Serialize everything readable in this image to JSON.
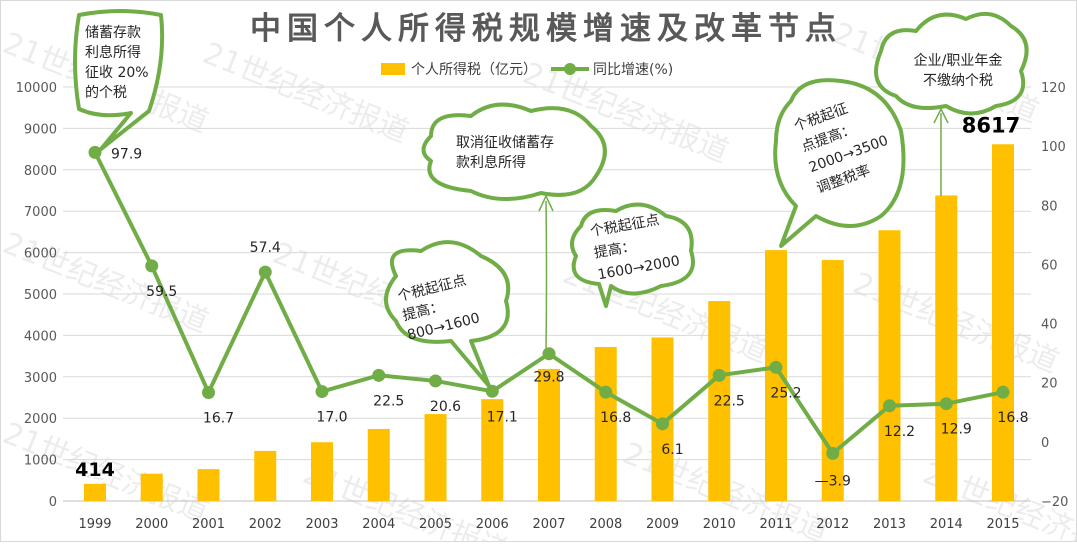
{
  "chart_data": {
    "type": "bar+line",
    "title": "中国个人所得税规模增速及改革节点",
    "categories": [
      "1999",
      "2000",
      "2001",
      "2002",
      "2003",
      "2004",
      "2005",
      "2006",
      "2007",
      "2008",
      "2009",
      "2010",
      "2011",
      "2012",
      "2013",
      "2014",
      "2015"
    ],
    "series": [
      {
        "name": "个人所得税（亿元）",
        "type": "bar",
        "axis": "left",
        "color": "#FFC000",
        "values": [
          414,
          660,
          770,
          1210,
          1420,
          1740,
          2100,
          2460,
          3190,
          3720,
          3950,
          4830,
          6060,
          5820,
          6540,
          7380,
          8617
        ]
      },
      {
        "name": "同比增速(%)",
        "type": "line",
        "axis": "right",
        "color": "#70AD47",
        "values": [
          97.9,
          59.5,
          16.7,
          57.4,
          17.0,
          22.5,
          20.6,
          17.1,
          29.8,
          16.8,
          6.1,
          22.5,
          25.2,
          -3.9,
          12.2,
          12.9,
          16.8
        ],
        "labels": [
          "97.9",
          "59.5",
          "16.7",
          "57.4",
          "17.0",
          "22.5",
          "20.6",
          "17.1",
          "29.8",
          "16.8",
          "6.1",
          "22.5",
          "25.2",
          "—3.9",
          "12.2",
          "12.9",
          "16.8"
        ]
      }
    ],
    "bar_labels": {
      "first": "414",
      "last": "8617"
    },
    "left_axis": {
      "ylim": [
        0,
        10000
      ],
      "ticks": [
        "0",
        "1000",
        "2000",
        "3000",
        "4000",
        "5000",
        "6000",
        "7000",
        "8000",
        "9000",
        "10000"
      ]
    },
    "right_axis": {
      "ylim": [
        -20,
        120
      ],
      "ticks": [
        "−20",
        "0",
        "20",
        "40",
        "60",
        "80",
        "100",
        "120"
      ]
    },
    "grid": true,
    "legend_position": "top-center",
    "annotations": [
      {
        "year": "1999",
        "lines": [
          "储蓄存款",
          "利息所得",
          "征收 20%",
          "的个税"
        ]
      },
      {
        "year": "2006",
        "lines": [
          "个税起征点",
          "提高：",
          "800→1600"
        ]
      },
      {
        "year": "2007",
        "lines": [
          "取消征收储蓄存",
          "款利息所得"
        ]
      },
      {
        "year": "2008",
        "lines": [
          "个税起征点",
          "提高：",
          "1600→2000"
        ]
      },
      {
        "year": "2011",
        "lines": [
          "个税起征",
          "点提高：",
          "2000→3500",
          "调整税率"
        ]
      },
      {
        "year": "2014",
        "lines": [
          "企业/职业年金",
          "不缴纳个税"
        ]
      }
    ],
    "watermark": "21世纪经济报道"
  }
}
